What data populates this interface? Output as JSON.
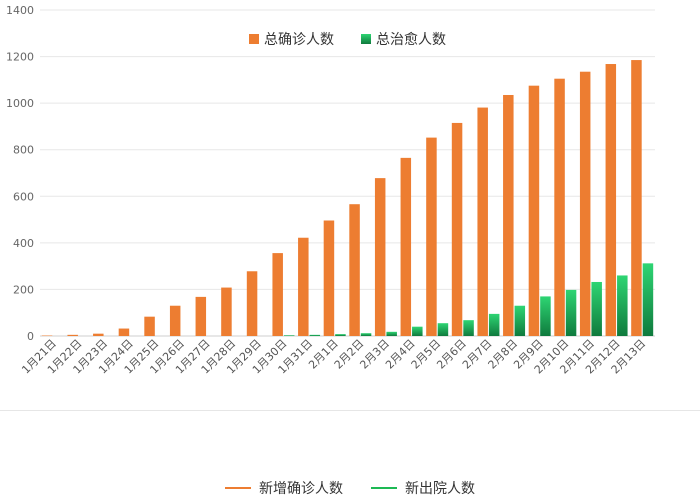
{
  "chart_data": {
    "type": "bar",
    "categories": [
      "1月21日",
      "1月22日",
      "1月23日",
      "1月24日",
      "1月25日",
      "1月26日",
      "1月27日",
      "1月28日",
      "1月29日",
      "1月30日",
      "1月31日",
      "2月1日",
      "2月2日",
      "2月3日",
      "2月4日",
      "2月5日",
      "2月6日",
      "2月7日",
      "2月8日",
      "2月9日",
      "2月10日",
      "2月11日",
      "2月12日",
      "2月13日"
    ],
    "series": [
      {
        "name": "总确诊人数",
        "color": "#ED7D31",
        "values": [
          2,
          5,
          10,
          32,
          83,
          130,
          168,
          208,
          278,
          356,
          422,
          496,
          566,
          678,
          765,
          852,
          915,
          981,
          1035,
          1075,
          1105,
          1135,
          1168,
          1185
        ]
      },
      {
        "name": "总治愈人数",
        "color": "#1DB954",
        "values": [
          0,
          0,
          0,
          0,
          0,
          0,
          0,
          0,
          0,
          3,
          5,
          8,
          12,
          18,
          40,
          55,
          68,
          95,
          130,
          170,
          198,
          232,
          260,
          312
        ]
      }
    ],
    "ylim": [
      0,
      1400
    ],
    "yticks": [
      0,
      200,
      400,
      600,
      800,
      1000,
      1200,
      1400
    ],
    "grid": true,
    "legend_position": "top-center"
  },
  "bottom_legend": {
    "items": [
      {
        "label": "新增确诊人数",
        "color": "#ED7D31"
      },
      {
        "label": "新出院人数",
        "color": "#1DB954"
      }
    ]
  }
}
